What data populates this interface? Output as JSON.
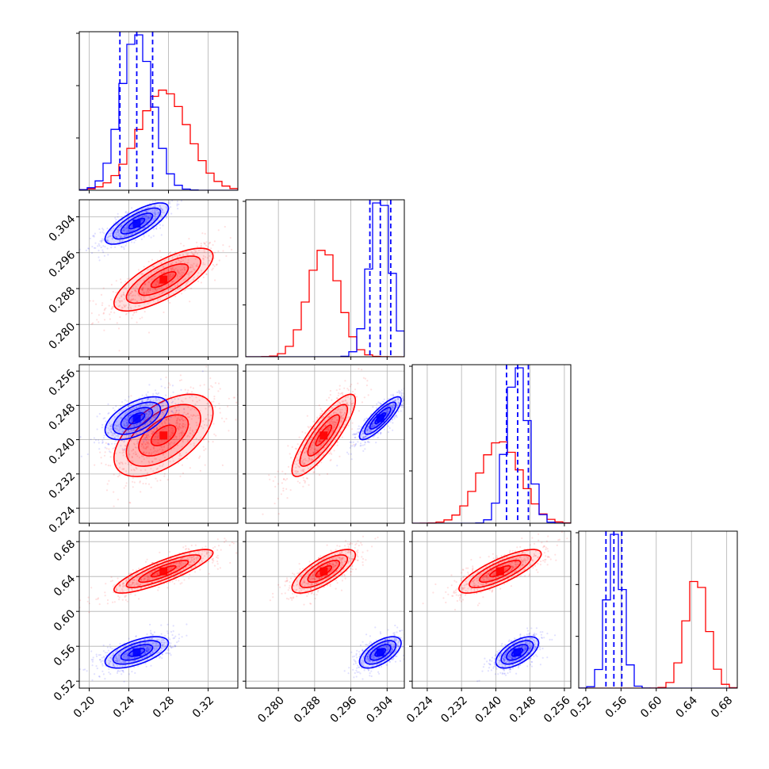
{
  "chart_data": {
    "type": "corner",
    "n_params": 4,
    "colors": {
      "series_a": "#ff0000",
      "series_b": "#0000ff"
    },
    "series": [
      {
        "name": "red",
        "color": "#ff0000",
        "mean": [
          0.275,
          0.29,
          0.241,
          0.646
        ],
        "std": [
          0.025,
          0.0035,
          0.0048,
          0.0125
        ],
        "corr": [
          [
            0,
            0,
            0,
            0
          ],
          [
            0.75,
            0,
            0,
            0
          ],
          [
            0.55,
            0.85,
            0,
            0
          ],
          [
            0.85,
            0.75,
            0.8,
            0
          ]
        ]
      },
      {
        "name": "blue",
        "color": "#0000ff",
        "mean": [
          0.248,
          0.3025,
          0.245,
          0.553
        ],
        "std": [
          0.016,
          0.0023,
          0.0025,
          0.009
        ],
        "corr": [
          [
            0,
            0,
            0,
            0
          ],
          [
            0.75,
            0,
            0,
            0
          ],
          [
            0.55,
            0.85,
            0,
            0
          ],
          [
            0.6,
            0.6,
            0.6,
            0
          ]
        ],
        "quantiles": [
          [
            0.231,
            0.248,
            0.264
          ],
          [
            0.3002,
            0.3025,
            0.3048
          ],
          [
            0.2425,
            0.2451,
            0.2476
          ],
          [
            0.5429,
            0.5519,
            0.5609
          ]
        ]
      }
    ],
    "params": [
      {
        "range": [
          0.19,
          0.35
        ],
        "ticks": [
          0.2,
          0.24,
          0.28,
          0.32
        ],
        "labels": [
          "0.20",
          "0.24",
          "0.28",
          "0.32"
        ]
      },
      {
        "range": [
          0.2728,
          0.3078
        ],
        "ticks": [
          0.28,
          0.288,
          0.296,
          0.304
        ],
        "labels": [
          "0.280",
          "0.288",
          "0.296",
          "0.304"
        ]
      },
      {
        "range": [
          0.2205,
          0.2575
        ],
        "ticks": [
          0.224,
          0.232,
          0.24,
          0.248,
          0.256
        ],
        "labels": [
          "0.224",
          "0.232",
          "0.240",
          "0.248",
          "0.256"
        ]
      },
      {
        "range": [
          0.512,
          0.692
        ],
        "ticks": [
          0.52,
          0.56,
          0.6,
          0.64,
          0.68
        ],
        "labels": [
          "0.52",
          "0.56",
          "0.60",
          "0.64",
          "0.68"
        ]
      }
    ],
    "grid": true
  }
}
